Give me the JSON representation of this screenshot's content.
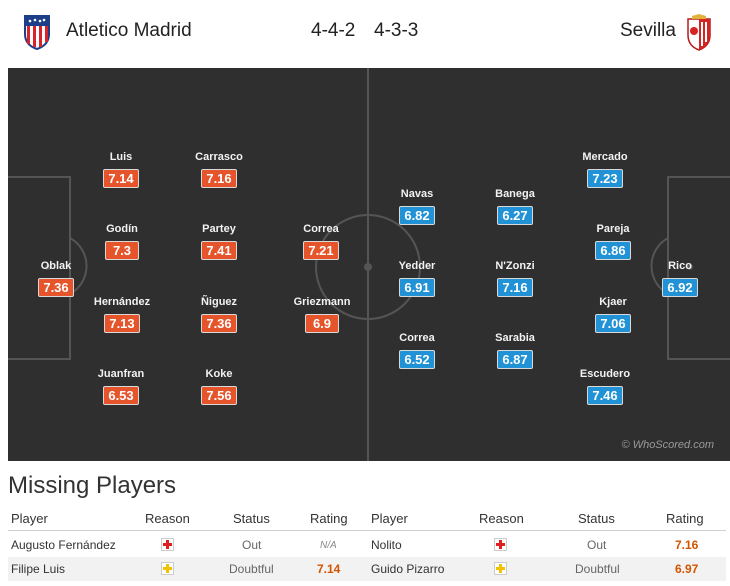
{
  "header": {
    "home_team": "Atletico Madrid",
    "away_team": "Sevilla",
    "home_formation": "4-4-2",
    "away_formation": "4-3-3",
    "home_logo_icon": "atletico-crest-icon",
    "away_logo_icon": "sevilla-crest-icon"
  },
  "colors": {
    "home_rating": "#e5542a",
    "away_rating": "#2192d6",
    "pitch": "#2f2f2f"
  },
  "pitch": {
    "watermark": "© WhoScored.com",
    "home_players": [
      {
        "name": "Luis",
        "rating": "7.14"
      },
      {
        "name": "Carrasco",
        "rating": "7.16"
      },
      {
        "name": "Godín",
        "rating": "7.3"
      },
      {
        "name": "Partey",
        "rating": "7.41"
      },
      {
        "name": "Correa",
        "rating": "7.21"
      },
      {
        "name": "Oblak",
        "rating": "7.36"
      },
      {
        "name": "Hernández",
        "rating": "7.13"
      },
      {
        "name": "Ñiguez",
        "rating": "7.36"
      },
      {
        "name": "Griezmann",
        "rating": "6.9"
      },
      {
        "name": "Juanfran",
        "rating": "6.53"
      },
      {
        "name": "Koke",
        "rating": "7.56"
      }
    ],
    "away_players": [
      {
        "name": "Mercado",
        "rating": "7.23"
      },
      {
        "name": "Navas",
        "rating": "6.82"
      },
      {
        "name": "Banega",
        "rating": "6.27"
      },
      {
        "name": "Pareja",
        "rating": "6.86"
      },
      {
        "name": "Yedder",
        "rating": "6.91"
      },
      {
        "name": "N'Zonzi",
        "rating": "7.16"
      },
      {
        "name": "Rico",
        "rating": "6.92"
      },
      {
        "name": "Kjaer",
        "rating": "7.06"
      },
      {
        "name": "Correa",
        "rating": "6.52"
      },
      {
        "name": "Sarabia",
        "rating": "6.87"
      },
      {
        "name": "Escudero",
        "rating": "7.46"
      }
    ]
  },
  "missing": {
    "title": "Missing Players",
    "columns": [
      "Player",
      "Reason",
      "Status",
      "Rating",
      "Player",
      "Reason",
      "Status",
      "Rating"
    ],
    "rows": [
      {
        "home_player": "Augusto Fernández",
        "home_reason_icon": "injury-red-cross-icon",
        "home_status": "Out",
        "home_rating": "N/A",
        "away_player": "Nolito",
        "away_reason_icon": "injury-red-cross-icon",
        "away_status": "Out",
        "away_rating": "7.16"
      },
      {
        "home_player": "Filipe Luis",
        "home_reason_icon": "doubtful-yellow-cross-icon",
        "home_status": "Doubtful",
        "home_rating": "7.14",
        "away_player": "Guido Pizarro",
        "away_reason_icon": "doubtful-yellow-cross-icon",
        "away_status": "Doubtful",
        "away_rating": "6.97"
      }
    ]
  }
}
